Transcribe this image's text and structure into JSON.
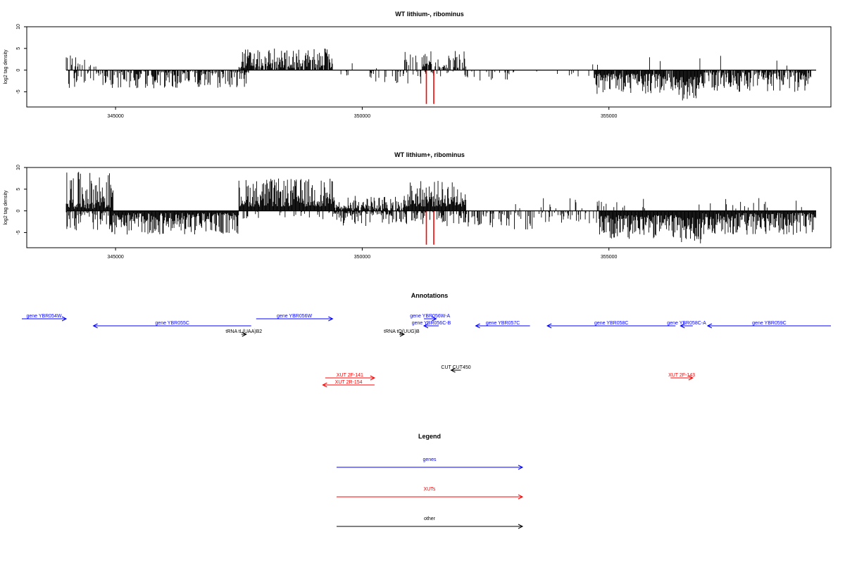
{
  "chart_data": [
    {
      "type": "bar",
      "title": "WT lithium-, ribominus",
      "ylabel": "log2 tag density",
      "xlim": [
        343200,
        359500
      ],
      "ylim": [
        -8.5,
        10
      ],
      "yticks": [
        -5,
        0,
        5,
        10
      ],
      "xticks": [
        345000,
        350000,
        355000
      ],
      "series": [
        {
          "color": "#000000",
          "regions": [
            {
              "strand": "+",
              "from": 344000,
              "to": 344600,
              "min": 0.5,
              "max": 4.2,
              "density": 0.25
            },
            {
              "strand": "-",
              "from": 344050,
              "to": 344600,
              "min": 0.3,
              "max": 4.5,
              "density": 0.35
            },
            {
              "strand": "-",
              "from": 344600,
              "to": 347700,
              "min": 0.3,
              "max": 4.2,
              "density": 0.65
            },
            {
              "strand": "+",
              "from": 347500,
              "to": 349400,
              "min": 0.5,
              "max": 5.0,
              "density": 0.85
            },
            {
              "strand": "-",
              "from": 349400,
              "to": 350300,
              "min": 0.2,
              "max": 2.0,
              "density": 0.08
            },
            {
              "strand": "+",
              "from": 349700,
              "to": 350400,
              "min": 0.2,
              "max": 1.8,
              "density": 0.05
            },
            {
              "strand": "-",
              "from": 350000,
              "to": 351300,
              "min": 0.3,
              "max": 3.2,
              "density": 0.2
            },
            {
              "strand": "+",
              "from": 350700,
              "to": 351300,
              "min": 0.5,
              "max": 4.5,
              "density": 0.2
            },
            {
              "strand": "+",
              "from": 351200,
              "to": 352100,
              "min": 0.5,
              "max": 4.5,
              "density": 0.55
            },
            {
              "strand": "-",
              "from": 351300,
              "to": 352100,
              "min": 0.3,
              "max": 2.5,
              "density": 0.25
            },
            {
              "strand": "-",
              "from": 352100,
              "to": 353200,
              "min": 0.3,
              "max": 2.5,
              "density": 0.15
            },
            {
              "strand": "-",
              "from": 353200,
              "to": 354700,
              "min": 0.2,
              "max": 1.5,
              "density": 0.06
            },
            {
              "strand": "-",
              "from": 354700,
              "to": 356300,
              "min": 0.8,
              "max": 5.5,
              "density": 0.9
            },
            {
              "strand": "-",
              "from": 356300,
              "to": 356800,
              "min": 1.5,
              "max": 7.0,
              "density": 1.0
            },
            {
              "strand": "-",
              "from": 356800,
              "to": 359100,
              "min": 0.5,
              "max": 5.0,
              "density": 0.85
            },
            {
              "strand": "+",
              "from": 354600,
              "to": 358800,
              "min": 1.0,
              "max": 3.5,
              "density": 0.02
            }
          ]
        },
        {
          "color": "#ff0000",
          "bars": [
            {
              "x": 351300,
              "y": -7.8
            },
            {
              "x": 351450,
              "y": -7.8
            }
          ]
        }
      ]
    },
    {
      "type": "bar",
      "title": "WT lithium+, ribominus",
      "ylabel": "log2 tag density",
      "xlim": [
        343200,
        359500
      ],
      "ylim": [
        -8.5,
        10
      ],
      "yticks": [
        -5,
        0,
        5,
        10
      ],
      "xticks": [
        345000,
        350000,
        355000
      ],
      "series": [
        {
          "color": "#000000",
          "regions": [
            {
              "strand": "+",
              "from": 344000,
              "to": 344950,
              "min": 0.5,
              "max": 9.0,
              "density": 1.0
            },
            {
              "strand": "-",
              "from": 344000,
              "to": 344900,
              "min": 0.3,
              "max": 4.5,
              "density": 0.45
            },
            {
              "strand": "-",
              "from": 344900,
              "to": 347500,
              "min": 0.5,
              "max": 5.5,
              "density": 1.0
            },
            {
              "strand": "+",
              "from": 347500,
              "to": 349400,
              "min": 1.0,
              "max": 7.5,
              "density": 1.0
            },
            {
              "strand": "-",
              "from": 347500,
              "to": 349400,
              "min": 0.2,
              "max": 2.0,
              "density": 0.15
            },
            {
              "strand": "+",
              "from": 349400,
              "to": 350900,
              "min": 0.5,
              "max": 3.5,
              "density": 0.8
            },
            {
              "strand": "-",
              "from": 349400,
              "to": 350900,
              "min": 0.3,
              "max": 3.5,
              "density": 0.6
            },
            {
              "strand": "+",
              "from": 350900,
              "to": 352100,
              "min": 1.0,
              "max": 7.0,
              "density": 1.0
            },
            {
              "strand": "-",
              "from": 351000,
              "to": 352100,
              "min": 0.3,
              "max": 3.5,
              "density": 0.5
            },
            {
              "strand": "-",
              "from": 352100,
              "to": 353500,
              "min": 0.5,
              "max": 4.5,
              "density": 0.45
            },
            {
              "strand": "-",
              "from": 353500,
              "to": 354800,
              "min": 0.3,
              "max": 3.0,
              "density": 0.3
            },
            {
              "strand": "-",
              "from": 354800,
              "to": 356400,
              "min": 1.0,
              "max": 6.5,
              "density": 1.0
            },
            {
              "strand": "-",
              "from": 356400,
              "to": 356900,
              "min": 1.5,
              "max": 7.5,
              "density": 1.0
            },
            {
              "strand": "-",
              "from": 356900,
              "to": 359200,
              "min": 0.5,
              "max": 5.5,
              "density": 1.0
            },
            {
              "strand": "+",
              "from": 353000,
              "to": 359000,
              "min": 0.5,
              "max": 3.0,
              "density": 0.05
            }
          ]
        },
        {
          "color": "#ff0000",
          "bars": [
            {
              "x": 351300,
              "y": -7.8
            },
            {
              "x": 351450,
              "y": -7.8
            }
          ]
        }
      ]
    }
  ],
  "annotations": {
    "title": "Annotations",
    "colors": {
      "gene": "#0000ff",
      "xut": "#ff0000",
      "other": "#000000"
    },
    "features": [
      {
        "label": "gene YBR054W",
        "kind": "gene",
        "start": 343100,
        "end": 344000,
        "strand": "+",
        "row": 0
      },
      {
        "label": "gene YBR055C",
        "kind": "gene",
        "start": 344550,
        "end": 347750,
        "strand": "-",
        "row": 1
      },
      {
        "label": "gene YBR056W",
        "kind": "gene",
        "start": 347850,
        "end": 349400,
        "strand": "+",
        "row": 0
      },
      {
        "label": "gene YBR056W-A",
        "kind": "gene",
        "start": 351250,
        "end": 351500,
        "strand": "+",
        "row": 0
      },
      {
        "label": "gene YBR056C-B",
        "kind": "gene",
        "start": 351250,
        "end": 351550,
        "strand": "-",
        "row": 1
      },
      {
        "label": "gene YBR057C",
        "kind": "gene",
        "start": 352300,
        "end": 353400,
        "strand": "-",
        "row": 1
      },
      {
        "label": "gene YBR058C",
        "kind": "gene",
        "start": 353750,
        "end": 356350,
        "strand": "-",
        "row": 1
      },
      {
        "label": "gene YBR058C-A",
        "kind": "gene",
        "start": 356450,
        "end": 356700,
        "strand": "-",
        "row": 1
      },
      {
        "label": "gene YBR059C",
        "kind": "gene",
        "start": 357000,
        "end": 359500,
        "strand": "-",
        "row": 1
      },
      {
        "label": "tRNA tL(UAA)B2",
        "kind": "other",
        "start": 347550,
        "end": 347650,
        "strand": "+",
        "row": 2
      },
      {
        "label": "tRNA tQ(UUG)B",
        "kind": "other",
        "start": 350750,
        "end": 350850,
        "strand": "+",
        "row": 2
      },
      {
        "label": "CUT CUT450",
        "kind": "other",
        "start": 351800,
        "end": 352000,
        "strand": "-",
        "row": 4
      },
      {
        "label": "XUT 2F-141",
        "kind": "xut",
        "start": 349250,
        "end": 350250,
        "strand": "+",
        "row": 5
      },
      {
        "label": "XUT 2R-154",
        "kind": "xut",
        "start": 349200,
        "end": 350250,
        "strand": "-",
        "row": 6
      },
      {
        "label": "XUT 2F-143",
        "kind": "xut",
        "start": 356250,
        "end": 356700,
        "strand": "+",
        "row": 5
      }
    ]
  },
  "legend": {
    "title": "Legend",
    "entries": [
      {
        "label": "genes",
        "color": "#0000ff"
      },
      {
        "label": "XUTs",
        "color": "#ff0000"
      },
      {
        "label": "other",
        "color": "#000000"
      }
    ]
  }
}
